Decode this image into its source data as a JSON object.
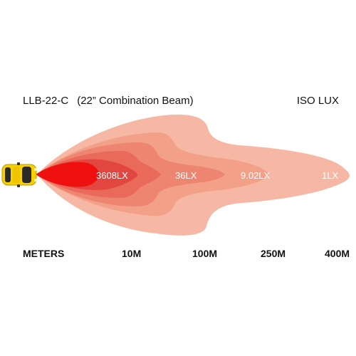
{
  "header": {
    "model": "LLB-22-C",
    "beam_name": "(22” Combination Beam)",
    "standard": "ISO LUX"
  },
  "lux_levels": [
    "3608LX",
    "36LX",
    "9.02LX",
    "1LX"
  ],
  "axis": {
    "unit_label": "METERS",
    "ticks": [
      "10M",
      "100M",
      "250M",
      "400M"
    ]
  },
  "colors": {
    "zone_1lx": "#f6b8a4",
    "zone_9lx": "#f3a088",
    "zone_36lx": "#ee8571",
    "zone_mid": "#e96a5a",
    "zone_hot": "#e24640",
    "zone_core": "#ee0f0f",
    "vehicle": "#f6d000"
  }
}
